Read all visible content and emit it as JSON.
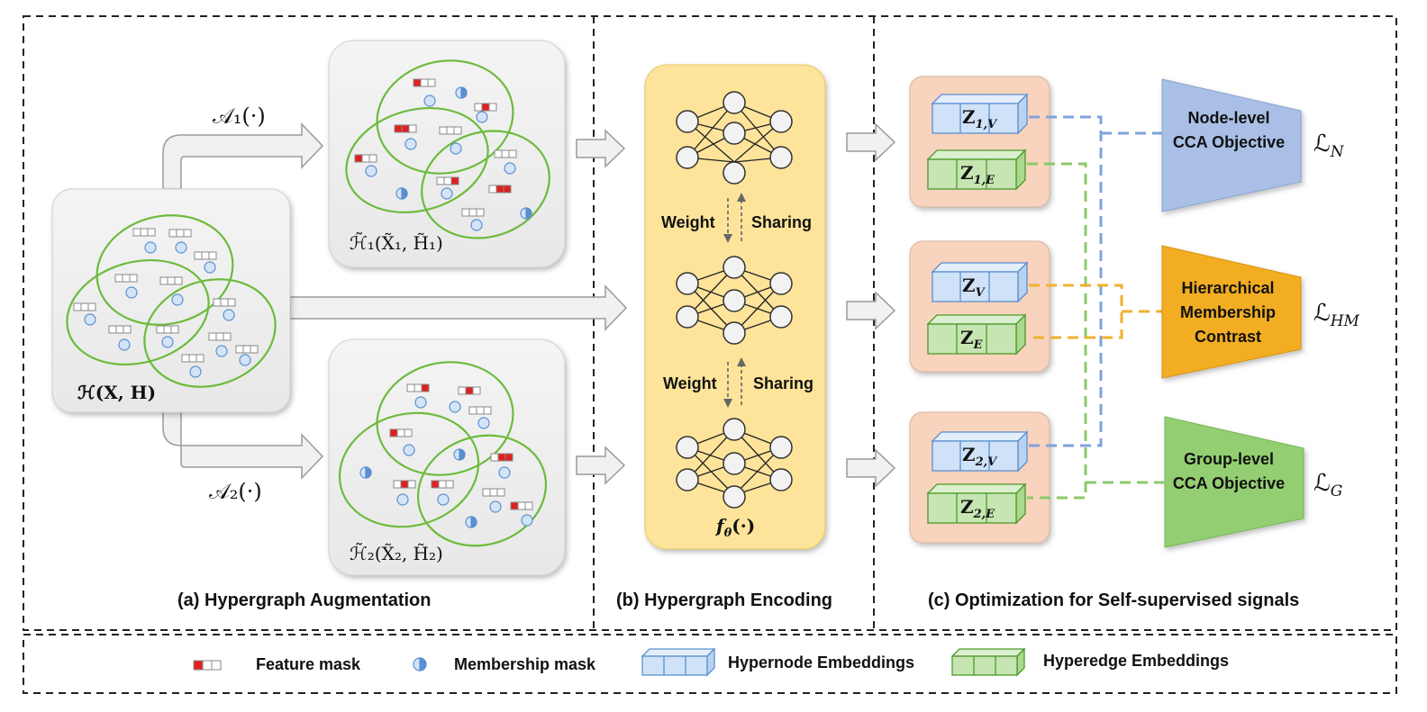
{
  "panels": {
    "a_title": "(a) Hypergraph Augmentation",
    "b_title": "(b) Hypergraph Encoding",
    "c_title": "(c) Optimization for Self-supervised signals"
  },
  "augmentation": {
    "a1": "𝒜₁(·)",
    "a2": "𝒜₂(·)",
    "orig_graph": "ℋ(X, H)",
    "view1": "ℋ̃₁(X̃₁, H̃₁)",
    "view2": "ℋ̃₂(X̃₂, H̃₂)"
  },
  "encoder": {
    "weight": "Weight",
    "sharing": "Sharing",
    "function": "f",
    "function_sub": "θ",
    "function_args": "(·)"
  },
  "embeddings": {
    "z1v": "Z",
    "z1v_sub": "1,V",
    "z1e": "Z",
    "z1e_sub": "1,E",
    "zv": "Z",
    "zv_sub": "V",
    "ze": "Z",
    "ze_sub": "E",
    "z2v": "Z",
    "z2v_sub": "2,V",
    "z2e": "Z",
    "z2e_sub": "2,E"
  },
  "objectives": {
    "node": "Node-level CCA Objective",
    "hm": "Hierarchical Membership Contrast",
    "group": "Group-level CCA Objective"
  },
  "losses": {
    "n_main": "ℒ",
    "n_sub": "N",
    "hm_main": "ℒ",
    "hm_sub": "HM",
    "g_main": "ℒ",
    "g_sub": "G"
  },
  "legend": {
    "feature_mask": "Feature mask",
    "membership_mask": "Membership mask",
    "hypernode": "Hypernode Embeddings",
    "hyperedge": "Hyperedge Embeddings"
  },
  "colors": {
    "node_blue": "#cfe2f7",
    "edge_green": "#c6e5b3",
    "encoder_yellow": "#fde49a",
    "emb_box": "#f8d3bd",
    "node_obj": "#a9bfe6",
    "hm_obj": "#f2ad24",
    "group_obj": "#93cf72",
    "mask_red": "#e02020",
    "hyperedge_ring": "#6cbb3c"
  }
}
